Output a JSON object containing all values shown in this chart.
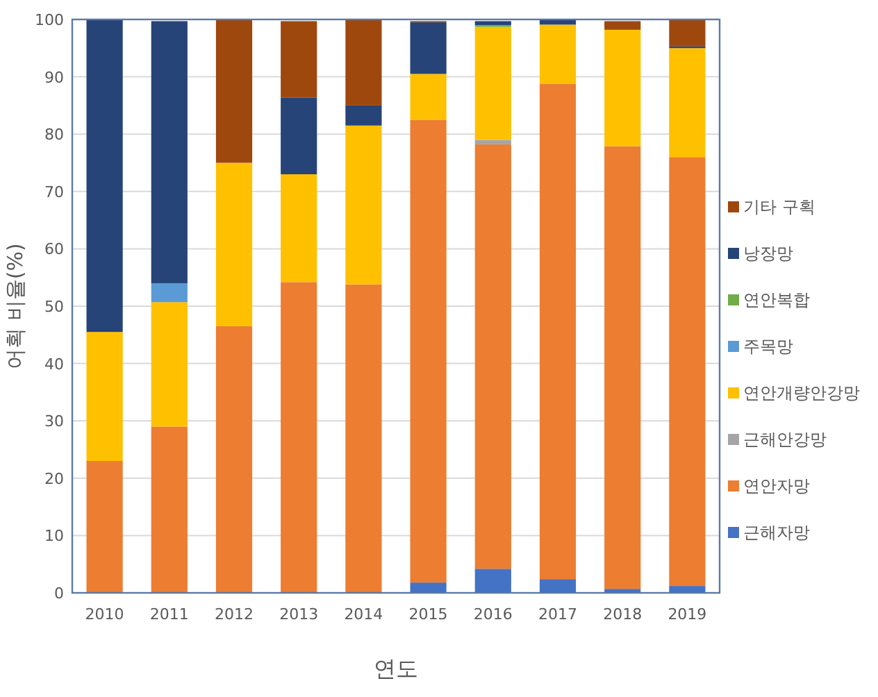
{
  "chart_data": {
    "type": "bar",
    "stacked": true,
    "xlabel": "연도",
    "ylabel": "어획 비율(%)",
    "categories": [
      "2010",
      "2011",
      "2012",
      "2013",
      "2014",
      "2015",
      "2016",
      "2017",
      "2018",
      "2019"
    ],
    "ylim": [
      0,
      100
    ],
    "yticks": [
      0,
      10,
      20,
      30,
      40,
      50,
      60,
      70,
      80,
      90,
      100
    ],
    "grid": "y",
    "legend": "right",
    "series": [
      {
        "name": "근해자망",
        "color": "#4472c4",
        "values": [
          null,
          null,
          null,
          null,
          null,
          1.8,
          4.2,
          2.4,
          0.7,
          1.2
        ]
      },
      {
        "name": "연안자망",
        "color": "#ed7d31",
        "values": [
          23,
          29,
          46.5,
          54.2,
          53.8,
          80.7,
          74,
          86.4,
          77.2,
          74.8
        ]
      },
      {
        "name": "근해안강망",
        "color": "#a5a5a5",
        "values": [
          null,
          null,
          null,
          null,
          null,
          null,
          0.8,
          null,
          null,
          null
        ]
      },
      {
        "name": "연안개량안강망",
        "color": "#ffc000",
        "values": [
          22.5,
          21.7,
          28.5,
          18.8,
          27.7,
          8,
          19.7,
          10.3,
          20.3,
          19
        ]
      },
      {
        "name": "주목망",
        "color": "#5b9bd5",
        "values": [
          null,
          3.3,
          null,
          null,
          null,
          null,
          null,
          null,
          null,
          null
        ]
      },
      {
        "name": "연안복합",
        "color": "#70ad47",
        "values": [
          null,
          null,
          null,
          null,
          null,
          null,
          0.3,
          null,
          null,
          null
        ]
      },
      {
        "name": "낭장망",
        "color": "#264478",
        "values": [
          54.5,
          45.7,
          null,
          13.4,
          3.5,
          9,
          0.7,
          0.9,
          null,
          0.3
        ]
      },
      {
        "name": "기타 구획",
        "color": "#9e480e",
        "values": [
          null,
          null,
          25,
          13.3,
          15,
          0.2,
          null,
          null,
          1.5,
          4.7
        ]
      }
    ]
  }
}
